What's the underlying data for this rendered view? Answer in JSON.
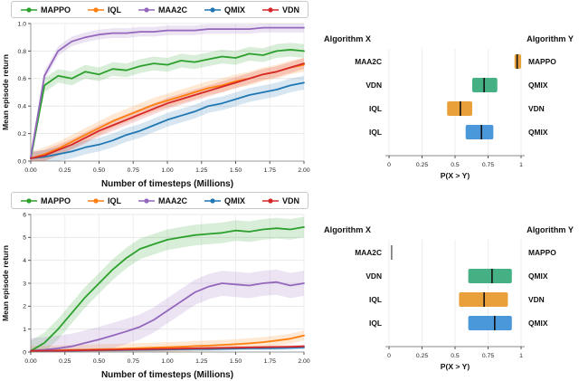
{
  "figure": {
    "description": "Benchmark figure: two learning-curve plots (mean episode return vs timesteps) with paired probability-of-improvement interval plots"
  },
  "colors": {
    "mappo_green": "#2ca02c",
    "iql_orange": "#ff7f0e",
    "maa2c_purple": "#9467bd",
    "qmix_blue": "#1f77b4",
    "vdn_red": "#d62728",
    "box_green": "#45b083",
    "box_orange": "#e9a03b",
    "box_blue": "#4a98d9",
    "median_black": "#111111"
  },
  "chart_data": [
    {
      "id": "top-left",
      "type": "line",
      "xlabel": "Number of timesteps (Millions)",
      "ylabel": "Mean episode return",
      "xlim": [
        0,
        2
      ],
      "ylim": [
        0,
        1.0
      ],
      "grid": true,
      "legend_position": "top",
      "xticks": [
        {
          "v": 0,
          "t": "0.00"
        },
        {
          "v": 0.25,
          "t": "0.25"
        },
        {
          "v": 0.5,
          "t": "0.50"
        },
        {
          "v": 0.75,
          "t": "0.75"
        },
        {
          "v": 1,
          "t": "1.00"
        },
        {
          "v": 1.25,
          "t": "1.25"
        },
        {
          "v": 1.5,
          "t": "1.50"
        },
        {
          "v": 1.75,
          "t": "1.75"
        },
        {
          "v": 2,
          "t": "2.00"
        }
      ],
      "yticks": [
        {
          "v": 0,
          "t": "0.0"
        },
        {
          "v": 0.2,
          "t": "0.2"
        },
        {
          "v": 0.4,
          "t": "0.4"
        },
        {
          "v": 0.6,
          "t": "0.6"
        },
        {
          "v": 0.8,
          "t": "0.8"
        },
        {
          "v": 1,
          "t": "1.0"
        }
      ],
      "x": [
        0,
        0.1,
        0.2,
        0.3,
        0.4,
        0.5,
        0.6,
        0.7,
        0.8,
        0.9,
        1,
        1.1,
        1.2,
        1.3,
        1.4,
        1.5,
        1.6,
        1.7,
        1.8,
        1.9,
        2
      ],
      "series": [
        {
          "name": "MAPPO",
          "color": "#2ca02c",
          "band": 0.05,
          "values": [
            0.02,
            0.55,
            0.62,
            0.6,
            0.65,
            0.63,
            0.67,
            0.66,
            0.69,
            0.71,
            0.7,
            0.73,
            0.72,
            0.74,
            0.76,
            0.75,
            0.78,
            0.77,
            0.8,
            0.81,
            0.8
          ]
        },
        {
          "name": "IQL",
          "color": "#ff7f0e",
          "band": 0.05,
          "values": [
            0.02,
            0.05,
            0.09,
            0.14,
            0.19,
            0.24,
            0.29,
            0.33,
            0.37,
            0.41,
            0.44,
            0.47,
            0.5,
            0.53,
            0.55,
            0.58,
            0.6,
            0.63,
            0.65,
            0.68,
            0.7
          ]
        },
        {
          "name": "MAA2C",
          "color": "#9467bd",
          "band": 0.035,
          "values": [
            0.03,
            0.62,
            0.8,
            0.87,
            0.9,
            0.92,
            0.93,
            0.93,
            0.94,
            0.94,
            0.95,
            0.95,
            0.95,
            0.96,
            0.96,
            0.96,
            0.96,
            0.97,
            0.97,
            0.97,
            0.97
          ]
        },
        {
          "name": "QMIX",
          "color": "#1f77b4",
          "band": 0.05,
          "values": [
            0.02,
            0.03,
            0.05,
            0.07,
            0.1,
            0.12,
            0.15,
            0.19,
            0.22,
            0.26,
            0.3,
            0.33,
            0.36,
            0.4,
            0.42,
            0.45,
            0.48,
            0.5,
            0.52,
            0.55,
            0.57
          ]
        },
        {
          "name": "VDN",
          "color": "#d62728",
          "band": 0.04,
          "values": [
            0.02,
            0.04,
            0.08,
            0.12,
            0.17,
            0.22,
            0.26,
            0.3,
            0.34,
            0.38,
            0.42,
            0.45,
            0.48,
            0.51,
            0.54,
            0.57,
            0.6,
            0.63,
            0.65,
            0.68,
            0.71
          ]
        }
      ]
    },
    {
      "id": "top-right",
      "type": "box-interval",
      "header_left": "Algorithm X",
      "header_right": "Algorithm Y",
      "xlabel": "P(X > Y)",
      "xlim": [
        0,
        1
      ],
      "xticks": [
        {
          "v": 0,
          "t": "0"
        },
        {
          "v": 0.25,
          "t": "0.25"
        },
        {
          "v": 0.5,
          "t": "0.5"
        },
        {
          "v": 0.75,
          "t": "0.75"
        },
        {
          "v": 1,
          "t": "1"
        }
      ],
      "rows": [
        {
          "left": "MAA2C",
          "right": "MAPPO",
          "lo": 0.95,
          "hi": 1.0,
          "median": 0.97,
          "color": "#e9a03b"
        },
        {
          "left": "VDN",
          "right": "QMIX",
          "lo": 0.63,
          "hi": 0.82,
          "median": 0.72,
          "color": "#45b083"
        },
        {
          "left": "IQL",
          "right": "VDN",
          "lo": 0.44,
          "hi": 0.63,
          "median": 0.54,
          "color": "#e9a03b"
        },
        {
          "left": "IQL",
          "right": "QMIX",
          "lo": 0.58,
          "hi": 0.79,
          "median": 0.7,
          "color": "#4a98d9"
        }
      ]
    },
    {
      "id": "bottom-left",
      "type": "line",
      "xlabel": "Number of timesteps (Millions)",
      "ylabel": "Mean episode return",
      "xlim": [
        0,
        2
      ],
      "ylim": [
        0,
        6
      ],
      "grid": true,
      "legend_position": "top",
      "xticks": [
        {
          "v": 0,
          "t": "0.00"
        },
        {
          "v": 0.25,
          "t": "0.25"
        },
        {
          "v": 0.5,
          "t": "0.50"
        },
        {
          "v": 0.75,
          "t": "0.75"
        },
        {
          "v": 1,
          "t": "1.00"
        },
        {
          "v": 1.25,
          "t": "1.25"
        },
        {
          "v": 1.5,
          "t": "1.50"
        },
        {
          "v": 1.75,
          "t": "1.75"
        },
        {
          "v": 2,
          "t": "2.00"
        }
      ],
      "yticks": [
        {
          "v": 0,
          "t": "0"
        },
        {
          "v": 1,
          "t": "1"
        },
        {
          "v": 2,
          "t": "2"
        },
        {
          "v": 3,
          "t": "3"
        },
        {
          "v": 4,
          "t": "4"
        },
        {
          "v": 5,
          "t": "5"
        },
        {
          "v": 6,
          "t": "6"
        }
      ],
      "x": [
        0,
        0.1,
        0.2,
        0.3,
        0.4,
        0.5,
        0.6,
        0.7,
        0.8,
        0.9,
        1,
        1.1,
        1.2,
        1.3,
        1.4,
        1.5,
        1.6,
        1.7,
        1.8,
        1.9,
        2
      ],
      "series": [
        {
          "name": "MAPPO",
          "color": "#2ca02c",
          "band": 0.45,
          "values": [
            0.05,
            0.4,
            1.0,
            1.7,
            2.4,
            3.0,
            3.6,
            4.1,
            4.5,
            4.7,
            4.9,
            5.0,
            5.1,
            5.15,
            5.2,
            5.3,
            5.25,
            5.35,
            5.4,
            5.35,
            5.45
          ]
        },
        {
          "name": "IQL",
          "color": "#ff7f0e",
          "band": 0.22,
          "values": [
            0.05,
            0.06,
            0.07,
            0.09,
            0.1,
            0.12,
            0.13,
            0.15,
            0.17,
            0.19,
            0.21,
            0.23,
            0.26,
            0.28,
            0.31,
            0.34,
            0.38,
            0.43,
            0.5,
            0.58,
            0.72
          ]
        },
        {
          "name": "MAA2C",
          "color": "#9467bd",
          "band": 0.55,
          "values": [
            0.05,
            0.1,
            0.16,
            0.25,
            0.4,
            0.55,
            0.72,
            0.9,
            1.1,
            1.4,
            1.8,
            2.2,
            2.6,
            2.85,
            3.0,
            2.95,
            2.9,
            3.0,
            3.05,
            2.9,
            3.0
          ]
        },
        {
          "name": "QMIX",
          "color": "#1f77b4",
          "band": 0.08,
          "values": [
            0.05,
            0.05,
            0.06,
            0.06,
            0.07,
            0.08,
            0.08,
            0.09,
            0.1,
            0.1,
            0.11,
            0.12,
            0.13,
            0.13,
            0.14,
            0.15,
            0.16,
            0.16,
            0.17,
            0.18,
            0.2
          ]
        },
        {
          "name": "VDN",
          "color": "#d62728",
          "band": 0.07,
          "values": [
            0.05,
            0.06,
            0.06,
            0.07,
            0.08,
            0.09,
            0.1,
            0.11,
            0.12,
            0.13,
            0.14,
            0.15,
            0.16,
            0.17,
            0.18,
            0.19,
            0.2,
            0.21,
            0.22,
            0.23,
            0.25
          ]
        }
      ]
    },
    {
      "id": "bottom-right",
      "type": "box-interval",
      "header_left": "Algorithm X",
      "header_right": "Algorithm Y",
      "xlabel": "P(X > Y)",
      "xlim": [
        0,
        1
      ],
      "xticks": [
        {
          "v": 0,
          "t": "0"
        },
        {
          "v": 0.25,
          "t": "0.25"
        },
        {
          "v": 0.5,
          "t": "0.5"
        },
        {
          "v": 0.75,
          "t": "0.75"
        },
        {
          "v": 1,
          "t": "1"
        }
      ],
      "rows": [
        {
          "left": "MAA2C",
          "right": "MAPPO",
          "lo": 0.02,
          "hi": 0.02,
          "median": 0.02,
          "color": "#444444"
        },
        {
          "left": "VDN",
          "right": "QMIX",
          "lo": 0.6,
          "hi": 0.93,
          "median": 0.78,
          "color": "#45b083"
        },
        {
          "left": "IQL",
          "right": "VDN",
          "lo": 0.53,
          "hi": 0.9,
          "median": 0.72,
          "color": "#e9a03b"
        },
        {
          "left": "IQL",
          "right": "QMIX",
          "lo": 0.6,
          "hi": 0.93,
          "median": 0.8,
          "color": "#4a98d9"
        }
      ]
    }
  ]
}
